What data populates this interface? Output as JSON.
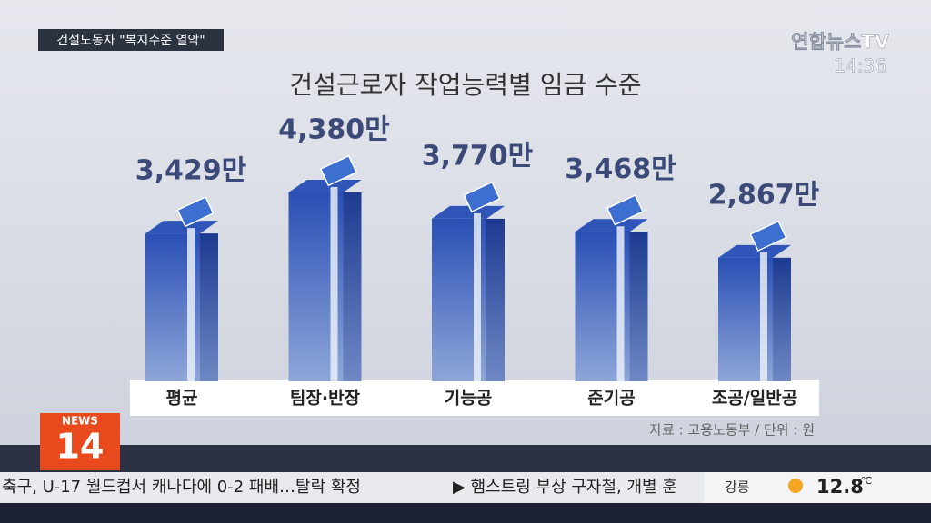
{
  "chart_data": {
    "type": "bar",
    "title": "건설근로자 작업능력별 임금 수준",
    "categories": [
      "평균",
      "팀장·반장",
      "기능공",
      "준기공",
      "조공/일반공"
    ],
    "values": [
      3429,
      4380,
      3770,
      3468,
      2867
    ],
    "value_labels": [
      "3,429만",
      "4,380만",
      "3,770만",
      "3,468만",
      "2,867만"
    ],
    "color": "#2f55b8",
    "source": "자료 : 고용노동부 / 단위 : 원"
  },
  "broadcast": {
    "tag": "건설노동자 \"복지수준 열악\"",
    "channel": "연합뉴스TV",
    "time": "14:36",
    "logo_top": "NEWS",
    "logo_num": "14",
    "ticker_left": "축구, U-17 월드컵서 캐나다에 0-2 패배…탈락 확정",
    "ticker_right": "▶ 햄스트링 부상 구자철, 개별 훈",
    "weather_city": "강릉",
    "weather_temp": "12.8",
    "weather_unit": "℃"
  }
}
